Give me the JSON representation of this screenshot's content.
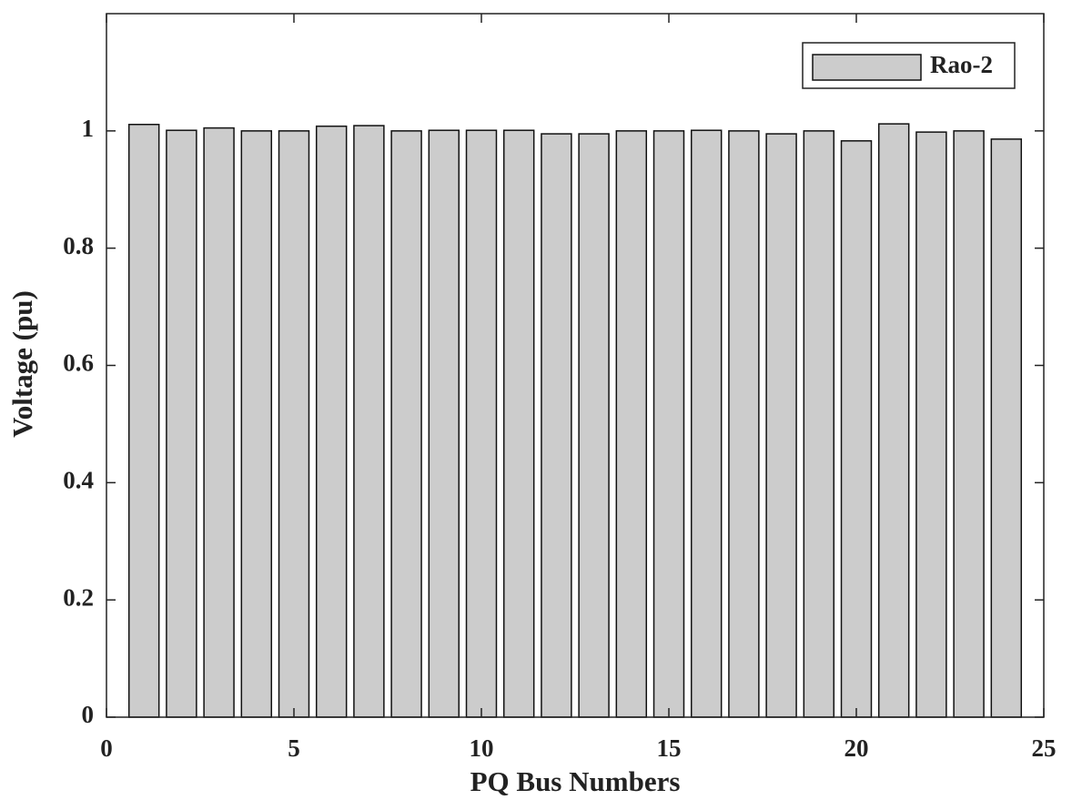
{
  "chart_data": {
    "type": "bar",
    "xlabel": "PQ Bus Numbers",
    "ylabel": "Voltage (pu)",
    "x": [
      1,
      2,
      3,
      4,
      5,
      6,
      7,
      8,
      9,
      10,
      11,
      12,
      13,
      14,
      15,
      16,
      17,
      18,
      19,
      20,
      21,
      22,
      23,
      24
    ],
    "series": [
      {
        "name": "Rao-2",
        "color": "#cccccc",
        "values": [
          1.011,
          1.001,
          1.005,
          1.0,
          1.0,
          1.008,
          1.009,
          1.0,
          1.001,
          1.001,
          1.001,
          0.995,
          0.995,
          1.0,
          1.0,
          1.001,
          1.0,
          0.995,
          1.0,
          0.983,
          1.012,
          0.998,
          1.0,
          0.986
        ]
      }
    ],
    "xlim": [
      0,
      25
    ],
    "ylim": [
      0,
      1.2
    ],
    "xticks": [
      0,
      5,
      10,
      15,
      20,
      25
    ],
    "yticks": [
      0,
      0.2,
      0.4,
      0.6,
      0.8,
      1
    ],
    "legend": "northeast"
  }
}
